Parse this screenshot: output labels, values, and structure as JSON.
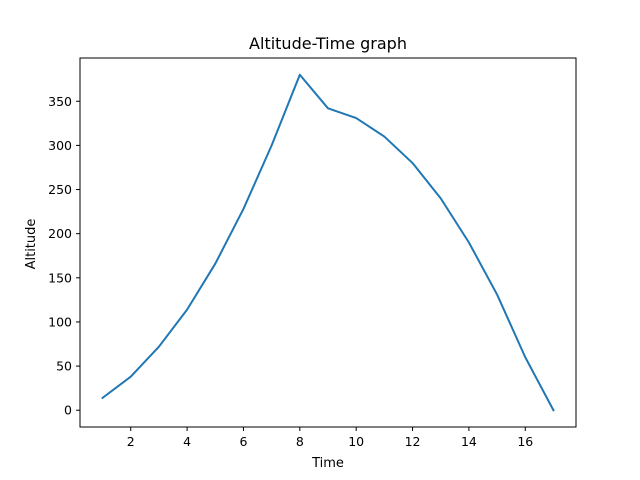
{
  "chart_data": {
    "type": "line",
    "title": "Altitude-Time graph",
    "xlabel": "Time",
    "ylabel": "Altitude",
    "xlim": [
      0.2,
      17.8
    ],
    "ylim": [
      -19,
      399
    ],
    "xticks": [
      2,
      4,
      6,
      8,
      10,
      12,
      14,
      16
    ],
    "yticks": [
      0,
      50,
      100,
      150,
      200,
      250,
      300,
      350
    ],
    "grid": false,
    "legend": "none",
    "series": [
      {
        "color": "#1f77b4",
        "x": [
          1,
          2,
          3,
          4,
          5,
          6,
          7,
          8,
          9,
          10,
          11,
          12,
          13,
          14,
          15,
          16,
          17
        ],
        "y": [
          14,
          38,
          72,
          114,
          166,
          228,
          300,
          380,
          342,
          331,
          310,
          280,
          240,
          190,
          131,
          60,
          0
        ]
      }
    ]
  }
}
